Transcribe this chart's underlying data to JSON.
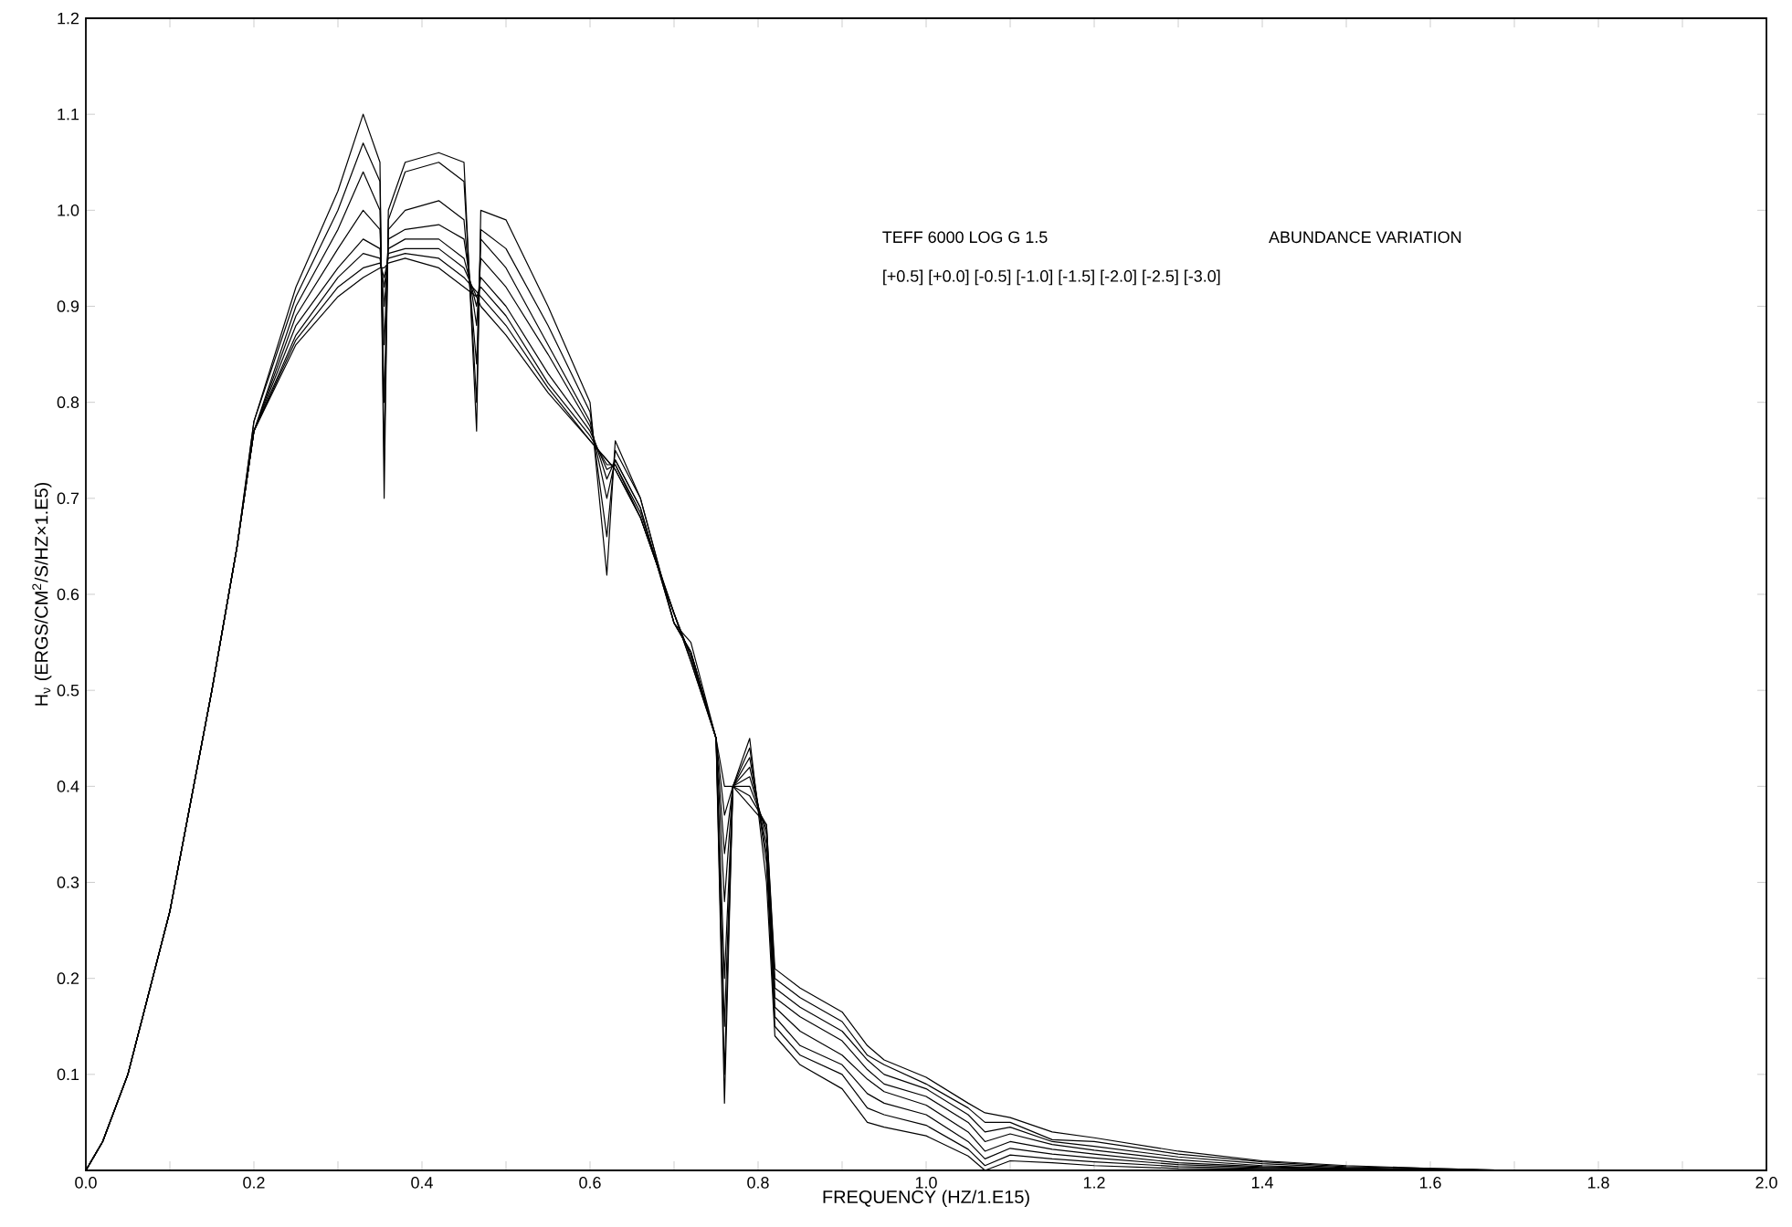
{
  "chart_data": {
    "type": "line",
    "xlabel": "FREQUENCY (HZ/1.E15)",
    "ylabel": "H$_{ν}$ (ERGS/CM$^{2}$/S/HZ×1.E5)",
    "annotations": [
      "TEFF 6000  LOG G 1.5",
      "ABUNDANCE VARIATION",
      "[+0.5] [+0.0] [-0.5] [-1.0] [-1.5] [-2.0] [-2.5] [-3.0]"
    ],
    "x": [
      0,
      0.02,
      0.05,
      0.1,
      0.15,
      0.18,
      0.2,
      0.25,
      0.3,
      0.33,
      0.35,
      0.355,
      0.36,
      0.38,
      0.42,
      0.45,
      0.465,
      0.47,
      0.5,
      0.55,
      0.6,
      0.62,
      0.63,
      0.66,
      0.7,
      0.72,
      0.75,
      0.76,
      0.77,
      0.79,
      0.81,
      0.82,
      0.85,
      0.9,
      0.93,
      0.95,
      1.0,
      1.05,
      1.07,
      1.1,
      1.15,
      1.2,
      1.3,
      1.4,
      1.5,
      1.6,
      1.7,
      1.8,
      2.0
    ],
    "xlim": [
      0,
      2.0
    ],
    "ylim": [
      0,
      1.2
    ],
    "xticks": [
      {
        "value": 0,
        "label": "0.0"
      },
      {
        "value": 0.1,
        "label": null
      },
      {
        "value": 0.2,
        "label": "0.2"
      },
      {
        "value": 0.3,
        "label": null
      },
      {
        "value": 0.4,
        "label": "0.4"
      },
      {
        "value": 0.5,
        "label": null
      },
      {
        "value": 0.6,
        "label": "0.6"
      },
      {
        "value": 0.7,
        "label": null
      },
      {
        "value": 0.8,
        "label": "0.8"
      },
      {
        "value": 0.9,
        "label": null
      },
      {
        "value": 1.0,
        "label": "1.0"
      },
      {
        "value": 1.1,
        "label": null
      },
      {
        "value": 1.2,
        "label": "1.2"
      },
      {
        "value": 1.3,
        "label": null
      },
      {
        "value": 1.4,
        "label": "1.4"
      },
      {
        "value": 1.5,
        "label": null
      },
      {
        "value": 1.6,
        "label": "1.6"
      },
      {
        "value": 1.7,
        "label": null
      },
      {
        "value": 1.8,
        "label": "1.8"
      },
      {
        "value": 1.9,
        "label": null
      },
      {
        "value": 2.0,
        "label": "2.0"
      }
    ],
    "yticks": [
      {
        "value": 0.1,
        "label": "0.1"
      },
      {
        "value": 0.2,
        "label": "0.2"
      },
      {
        "value": 0.3,
        "label": "0.3"
      },
      {
        "value": 0.4,
        "label": "0.4"
      },
      {
        "value": 0.5,
        "label": "0.5"
      },
      {
        "value": 0.6,
        "label": "0.6"
      },
      {
        "value": 0.7,
        "label": "0.7"
      },
      {
        "value": 0.8,
        "label": "0.8"
      },
      {
        "value": 0.9,
        "label": "0.9"
      },
      {
        "value": 1.0,
        "label": "1.0"
      },
      {
        "value": 1.1,
        "label": "1.1"
      },
      {
        "value": 1.2,
        "label": "1.2"
      }
    ],
    "series": [
      {
        "color": "#000000",
        "values": [
          0,
          0.03,
          0.1,
          0.27,
          0.5,
          0.65,
          0.78,
          0.92,
          1.02,
          1.1,
          1.05,
          0.7,
          1.0,
          1.05,
          1.06,
          1.05,
          0.77,
          1.0,
          0.99,
          0.9,
          0.8,
          0.62,
          0.76,
          0.7,
          0.57,
          0.55,
          0.45,
          0.07,
          0.4,
          0.45,
          0.3,
          0.14,
          0.11,
          0.085,
          0.05,
          0.045,
          0.036,
          0.015,
          0.0,
          0.01,
          0.008,
          0.005,
          0.002,
          0.001,
          0,
          0,
          0,
          0,
          0
        ]
      },
      {
        "color": "#000000",
        "values": [
          0,
          0.03,
          0.1,
          0.27,
          0.5,
          0.65,
          0.78,
          0.91,
          1.0,
          1.07,
          1.03,
          0.74,
          0.99,
          1.04,
          1.05,
          1.03,
          0.8,
          0.98,
          0.96,
          0.88,
          0.79,
          0.66,
          0.75,
          0.7,
          0.57,
          0.54,
          0.45,
          0.1,
          0.4,
          0.44,
          0.32,
          0.15,
          0.12,
          0.1,
          0.065,
          0.058,
          0.047,
          0.022,
          0.005,
          0.016,
          0.012,
          0.009,
          0.004,
          0.002,
          0.001,
          0,
          0,
          0,
          0
        ]
      },
      {
        "color": "#000000",
        "values": [
          0,
          0.03,
          0.1,
          0.27,
          0.5,
          0.65,
          0.77,
          0.9,
          0.98,
          1.04,
          1.0,
          0.8,
          0.98,
          1.0,
          1.01,
          0.99,
          0.84,
          0.97,
          0.94,
          0.86,
          0.78,
          0.7,
          0.74,
          0.69,
          0.57,
          0.54,
          0.45,
          0.15,
          0.4,
          0.43,
          0.33,
          0.16,
          0.13,
          0.11,
          0.08,
          0.07,
          0.058,
          0.03,
          0.012,
          0.023,
          0.017,
          0.013,
          0.006,
          0.003,
          0.001,
          0,
          0,
          0,
          0
        ]
      },
      {
        "color": "#000000",
        "values": [
          0,
          0.03,
          0.1,
          0.27,
          0.5,
          0.65,
          0.77,
          0.89,
          0.96,
          1.0,
          0.98,
          0.86,
          0.97,
          0.98,
          0.985,
          0.97,
          0.88,
          0.95,
          0.92,
          0.85,
          0.775,
          0.72,
          0.74,
          0.69,
          0.57,
          0.54,
          0.45,
          0.2,
          0.4,
          0.42,
          0.34,
          0.17,
          0.145,
          0.12,
          0.095,
          0.082,
          0.068,
          0.04,
          0.02,
          0.03,
          0.022,
          0.017,
          0.008,
          0.004,
          0.002,
          0.001,
          0,
          0,
          0
        ]
      },
      {
        "color": "#000000",
        "values": [
          0,
          0.03,
          0.1,
          0.27,
          0.5,
          0.65,
          0.77,
          0.88,
          0.94,
          0.97,
          0.96,
          0.9,
          0.96,
          0.97,
          0.97,
          0.95,
          0.9,
          0.93,
          0.9,
          0.83,
          0.77,
          0.73,
          0.735,
          0.685,
          0.58,
          0.535,
          0.45,
          0.28,
          0.4,
          0.41,
          0.35,
          0.18,
          0.16,
          0.135,
          0.105,
          0.09,
          0.077,
          0.05,
          0.03,
          0.038,
          0.027,
          0.021,
          0.011,
          0.005,
          0.002,
          0.001,
          0,
          0,
          0
        ]
      },
      {
        "color": "#000000",
        "values": [
          0,
          0.03,
          0.1,
          0.27,
          0.5,
          0.65,
          0.77,
          0.87,
          0.93,
          0.955,
          0.95,
          0.92,
          0.955,
          0.96,
          0.96,
          0.94,
          0.91,
          0.92,
          0.89,
          0.82,
          0.765,
          0.735,
          0.735,
          0.68,
          0.58,
          0.535,
          0.45,
          0.33,
          0.4,
          0.4,
          0.355,
          0.19,
          0.17,
          0.145,
          0.115,
          0.1,
          0.085,
          0.058,
          0.04,
          0.045,
          0.03,
          0.025,
          0.014,
          0.007,
          0.003,
          0.001,
          0,
          0,
          0
        ]
      },
      {
        "color": "#000000",
        "values": [
          0,
          0.03,
          0.1,
          0.27,
          0.5,
          0.65,
          0.77,
          0.865,
          0.92,
          0.94,
          0.945,
          0.93,
          0.95,
          0.955,
          0.95,
          0.93,
          0.915,
          0.91,
          0.88,
          0.815,
          0.76,
          0.74,
          0.73,
          0.68,
          0.58,
          0.53,
          0.45,
          0.37,
          0.4,
          0.39,
          0.36,
          0.2,
          0.18,
          0.155,
          0.12,
          0.11,
          0.09,
          0.065,
          0.05,
          0.05,
          0.032,
          0.03,
          0.017,
          0.009,
          0.004,
          0.002,
          0,
          0,
          0
        ]
      },
      {
        "color": "#000000",
        "values": [
          0,
          0.03,
          0.1,
          0.27,
          0.5,
          0.65,
          0.77,
          0.86,
          0.91,
          0.93,
          0.94,
          0.94,
          0.945,
          0.95,
          0.94,
          0.92,
          0.91,
          0.9,
          0.87,
          0.81,
          0.76,
          0.74,
          0.73,
          0.68,
          0.58,
          0.53,
          0.45,
          0.4,
          0.4,
          0.38,
          0.36,
          0.21,
          0.19,
          0.165,
          0.13,
          0.115,
          0.097,
          0.07,
          0.06,
          0.055,
          0.04,
          0.034,
          0.02,
          0.01,
          0.005,
          0.002,
          0,
          0,
          0
        ]
      }
    ]
  }
}
